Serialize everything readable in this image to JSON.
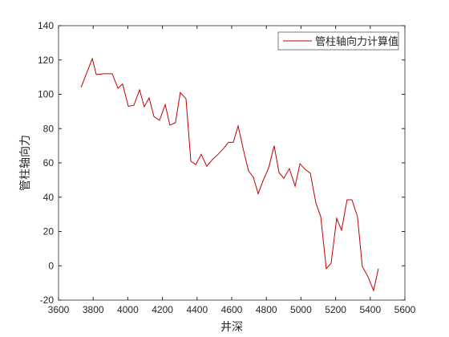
{
  "chart_data": {
    "type": "line",
    "xlabel": "井深",
    "ylabel": "管柱轴向力",
    "legend_location": "northeast",
    "xlim": [
      3600,
      5600
    ],
    "xticks": [
      3600,
      3800,
      4000,
      4200,
      4400,
      4600,
      4800,
      5000,
      5200,
      5400,
      5600
    ],
    "ylim": [
      -20,
      140
    ],
    "yticks": [
      -20,
      0,
      20,
      40,
      60,
      80,
      100,
      120,
      140
    ],
    "x": [
      3730,
      3795,
      3818,
      3864,
      3910,
      3943,
      3970,
      4003,
      4035,
      4068,
      4095,
      4123,
      4151,
      4183,
      4216,
      4243,
      4275,
      4303,
      4336,
      4364,
      4392,
      4424,
      4456,
      4489,
      4521,
      4553,
      4581,
      4609,
      4637,
      4669,
      4697,
      4725,
      4753,
      4781,
      4813,
      4845,
      4873,
      4901,
      4933,
      4966,
      4994,
      5026,
      5054,
      5086,
      5114,
      5146,
      5174,
      5206,
      5234,
      5266,
      5294,
      5326,
      5354,
      5387,
      5419,
      5447
    ],
    "series": [
      {
        "name": "管柱轴向力计算值",
        "color": "#c00000",
        "values": [
          104,
          120.8,
          111.5,
          112,
          112,
          103.5,
          106,
          93,
          93.6,
          102.6,
          92.7,
          97.9,
          87,
          84.8,
          94,
          82,
          83.4,
          101,
          97.4,
          61,
          59,
          65,
          58,
          62,
          65,
          68.4,
          72,
          72,
          81.5,
          67,
          55.3,
          51.6,
          42,
          49.7,
          57,
          70,
          54.4,
          51,
          56.7,
          46.4,
          59.5,
          56,
          54,
          36.6,
          28.7,
          -1.7,
          1.5,
          27.7,
          20.7,
          38.5,
          38.5,
          28.7,
          -0.4,
          -6.4,
          -14.4,
          -1.7
        ]
      }
    ]
  }
}
